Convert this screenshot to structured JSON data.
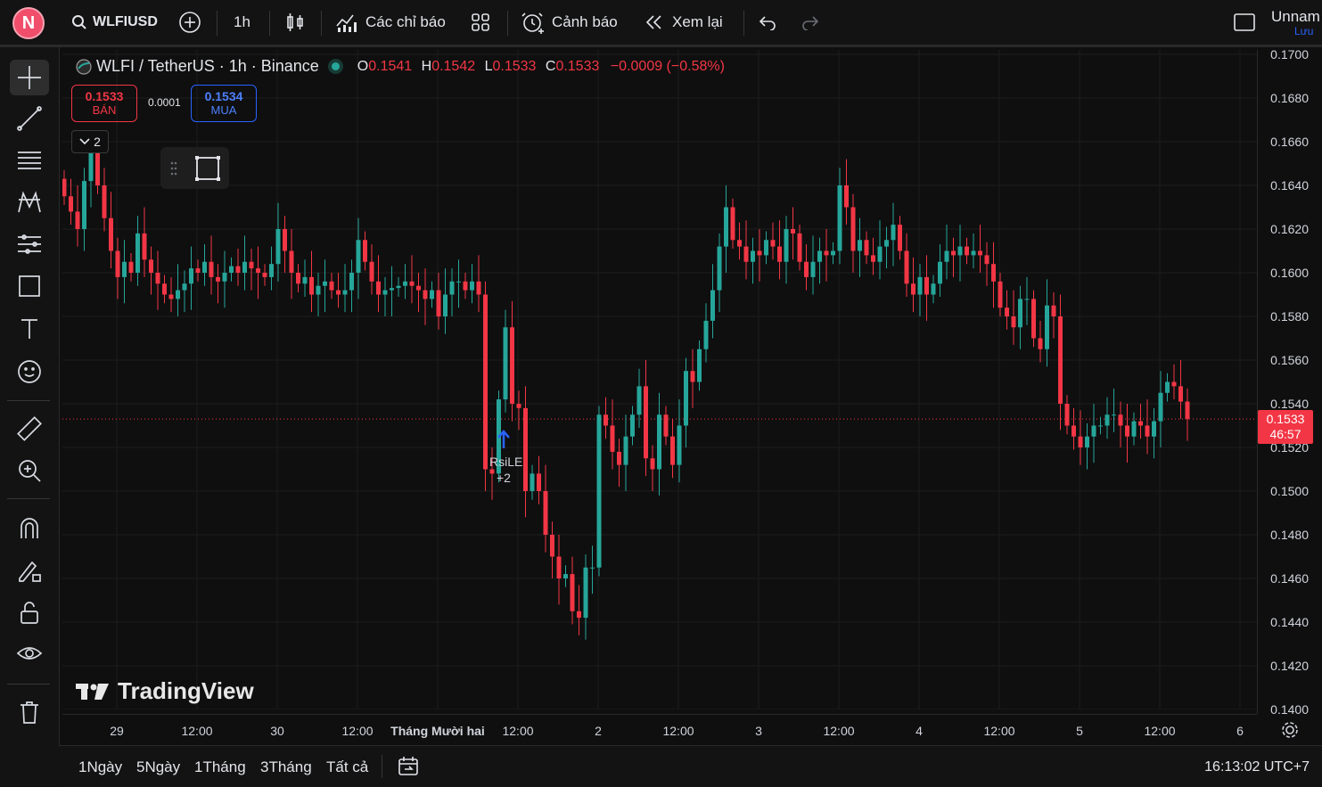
{
  "topbar": {
    "avatar_letter": "N",
    "symbol": "WLFIUSD",
    "interval": "1h",
    "indicators_label": "Các chỉ báo",
    "alert_label": "Cảnh báo",
    "replay_label": "Xem lại",
    "layout_name": "Unnam",
    "save_label": "Lưu"
  },
  "legend": {
    "title": "WLFI / TetherUS · 1h · Binance",
    "o_label": "O",
    "o_value": "0.1541",
    "h_label": "H",
    "h_value": "0.1542",
    "l_label": "L",
    "l_value": "0.1533",
    "c_label": "C",
    "c_value": "0.1533",
    "change": "−0.0009 (−0.58%)"
  },
  "trade": {
    "sell_price": "0.1533",
    "sell_label": "BÁN",
    "spread": "0.0001",
    "buy_price": "0.1534",
    "buy_label": "MUA",
    "indicator_count": "2"
  },
  "markers": {
    "signal_label": "RsiLE",
    "signal_more": "+2"
  },
  "watermark": "TradingView",
  "price_axis": {
    "labels": [
      "0.1700",
      "0.1680",
      "0.1660",
      "0.1640",
      "0.1620",
      "0.1600",
      "0.1580",
      "0.1560",
      "0.1540",
      "0.1520",
      "0.1500",
      "0.1480",
      "0.1460",
      "0.1440",
      "0.1420",
      "0.1400"
    ],
    "current_price": "0.1533",
    "countdown": "46:57"
  },
  "time_axis": [
    "29",
    "12:00",
    "30",
    "12:00",
    "Tháng Mười hai",
    "12:00",
    "2",
    "12:00",
    "3",
    "12:00",
    "4",
    "12:00",
    "5",
    "12:00",
    "6"
  ],
  "bottombar": {
    "ranges": [
      "1Ngày",
      "5Ngày",
      "1Tháng",
      "3Tháng",
      "Tất cả"
    ],
    "clock": "16:13:02 UTC+7"
  },
  "colors": {
    "up": "#26a69a",
    "down": "#f23645",
    "background": "#0f0f0f"
  },
  "chart_data": {
    "type": "candlestick",
    "ylim": [
      0.14,
      0.17
    ],
    "last_price": 0.1533,
    "x_ticks": [
      "29",
      "12:00",
      "30",
      "12:00",
      "Tháng Mười hai",
      "12:00",
      "2",
      "12:00",
      "3",
      "12:00",
      "4",
      "12:00",
      "5",
      "12:00",
      "6"
    ],
    "closes": [
      0.1635,
      0.1628,
      0.162,
      0.1642,
      0.1655,
      0.164,
      0.1625,
      0.161,
      0.1598,
      0.1605,
      0.16,
      0.1618,
      0.1606,
      0.16,
      0.1595,
      0.159,
      0.1588,
      0.1592,
      0.1595,
      0.1602,
      0.16,
      0.1605,
      0.1598,
      0.1596,
      0.16,
      0.1603,
      0.16,
      0.1605,
      0.1602,
      0.16,
      0.1598,
      0.1604,
      0.162,
      0.161,
      0.16,
      0.1595,
      0.1598,
      0.159,
      0.1594,
      0.1596,
      0.1592,
      0.159,
      0.1592,
      0.16,
      0.1615,
      0.1605,
      0.1596,
      0.159,
      0.1592,
      0.1593,
      0.1594,
      0.1596,
      0.1594,
      0.1592,
      0.1588,
      0.1592,
      0.158,
      0.159,
      0.1596,
      0.1596,
      0.1592,
      0.1596,
      0.159,
      0.151,
      0.1508,
      0.1542,
      0.1575,
      0.154,
      0.1538,
      0.15,
      0.1508,
      0.15,
      0.148,
      0.147,
      0.146,
      0.1462,
      0.1445,
      0.1442,
      0.1465,
      0.1465,
      0.1535,
      0.153,
      0.1518,
      0.1512,
      0.1525,
      0.1535,
      0.1548,
      0.1515,
      0.151,
      0.1535,
      0.1525,
      0.1512,
      0.153,
      0.1555,
      0.155,
      0.1565,
      0.1578,
      0.1592,
      0.1612,
      0.163,
      0.1615,
      0.1612,
      0.1605,
      0.161,
      0.1608,
      0.1615,
      0.1612,
      0.1605,
      0.162,
      0.1618,
      0.1605,
      0.1598,
      0.1605,
      0.161,
      0.1608,
      0.161,
      0.164,
      0.163,
      0.161,
      0.1615,
      0.1608,
      0.1605,
      0.1612,
      0.1615,
      0.1622,
      0.161,
      0.1595,
      0.159,
      0.1598,
      0.159,
      0.1595,
      0.1605,
      0.161,
      0.1608,
      0.1612,
      0.1608,
      0.161,
      0.1608,
      0.1604,
      0.1596,
      0.1584,
      0.158,
      0.1575,
      0.1588,
      0.1588,
      0.157,
      0.1565,
      0.1585,
      0.158,
      0.154,
      0.153,
      0.1525,
      0.152,
      0.1525,
      0.153,
      0.153,
      0.1535,
      0.1535,
      0.153,
      0.1525,
      0.1532,
      0.153,
      0.1525,
      0.1532,
      0.1545,
      0.155,
      0.1548,
      0.1541,
      0.1533
    ]
  }
}
